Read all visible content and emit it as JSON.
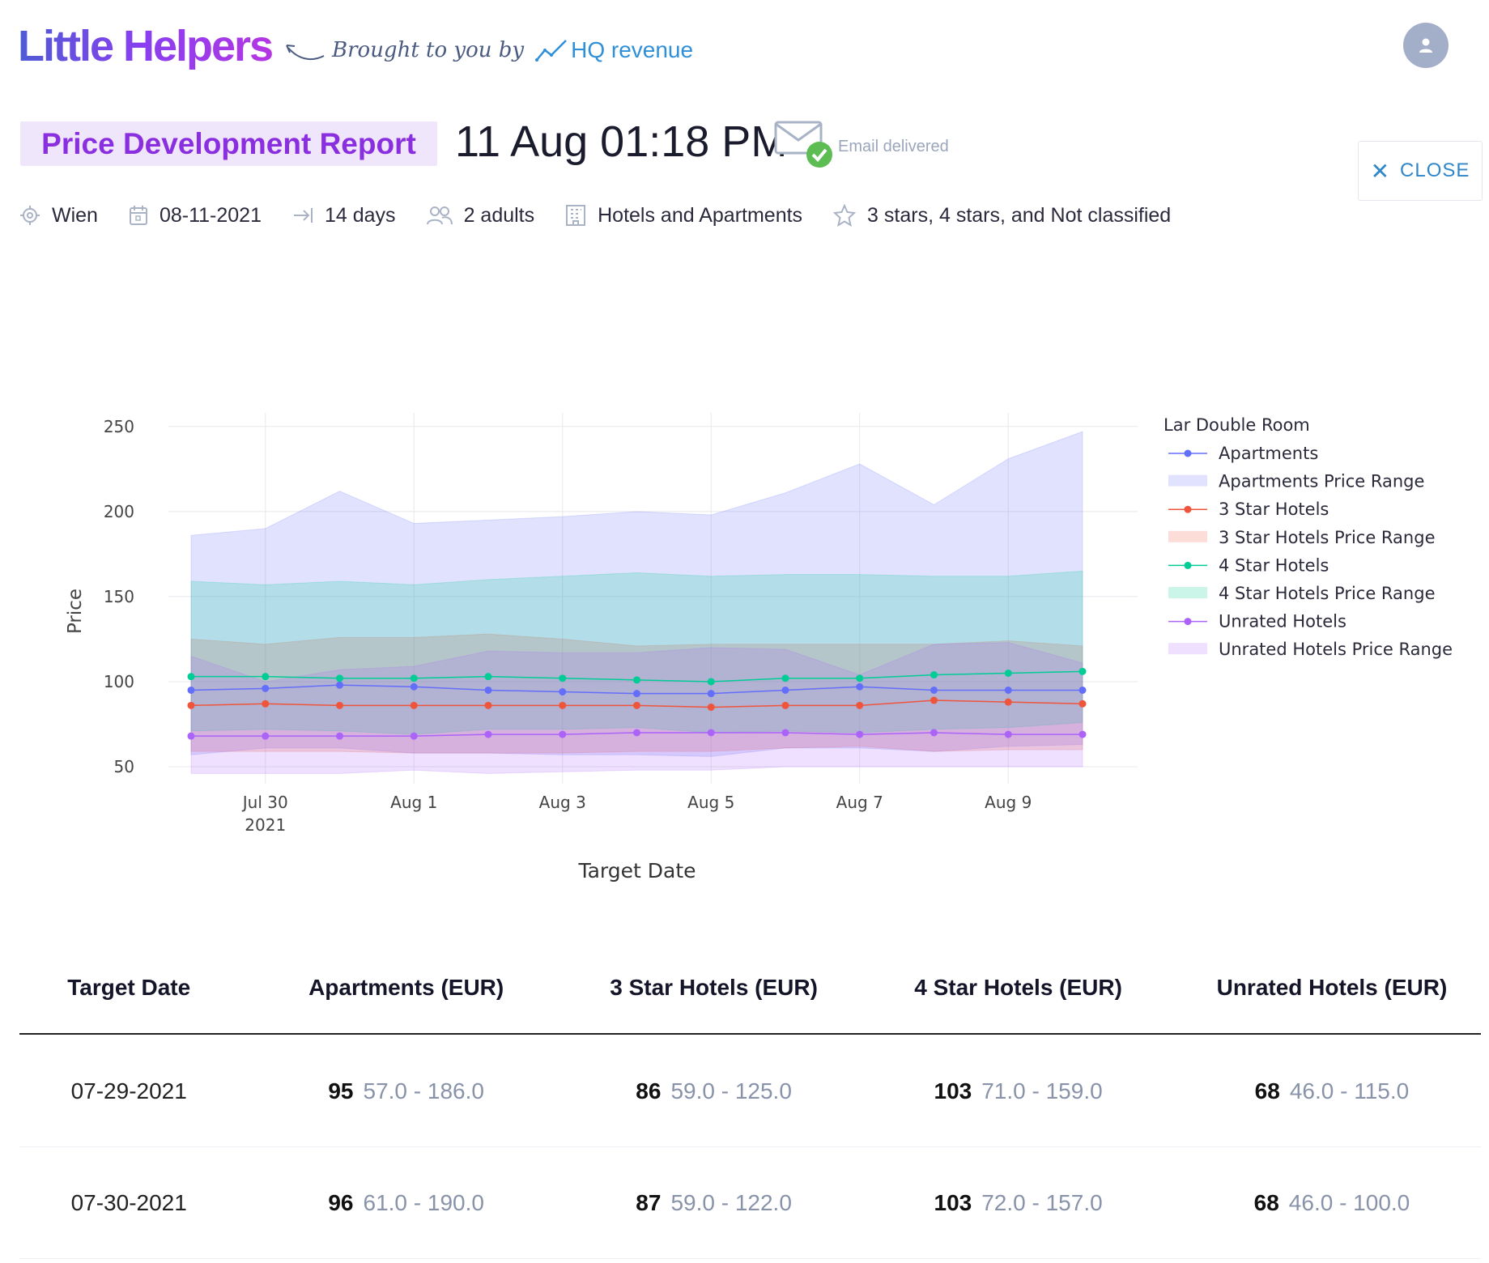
{
  "brand": {
    "name": "Little Helpers",
    "byline": "Brought to you by",
    "partner": "HQ revenue"
  },
  "header": {
    "title": "Price Development Report",
    "timestamp": "11 Aug 01:18 PM",
    "email_status": "Email delivered",
    "close_label": "CLOSE"
  },
  "filters": {
    "location": "Wien",
    "date": "08-11-2021",
    "duration": "14 days",
    "guests": "2 adults",
    "property_types": "Hotels and Apartments",
    "ratings": "3 stars, 4 stars, and Not classified"
  },
  "chart_data": {
    "type": "line",
    "xlabel": "Target Date",
    "ylabel": "Price",
    "ylim": [
      40,
      258
    ],
    "yticks": [
      50,
      100,
      150,
      200,
      250
    ],
    "xticks": [
      {
        "label": "Jul 30",
        "sub": "2021",
        "day": 1
      },
      {
        "label": "Aug 1",
        "sub": "",
        "day": 3
      },
      {
        "label": "Aug 3",
        "sub": "",
        "day": 5
      },
      {
        "label": "Aug 5",
        "sub": "",
        "day": 7
      },
      {
        "label": "Aug 7",
        "sub": "",
        "day": 9
      },
      {
        "label": "Aug 9",
        "sub": "",
        "day": 11
      }
    ],
    "x_days": [
      0,
      1,
      2,
      3,
      4,
      5,
      6,
      7,
      8,
      9,
      10,
      11,
      12
    ],
    "legend_title": "Lar Double Room",
    "legend": [
      "Apartments",
      "Apartments Price Range",
      "3 Star Hotels",
      "3 Star Hotels Price Range",
      "4 Star Hotels",
      "4 Star Hotels Price Range",
      "Unrated Hotels",
      "Unrated Hotels Price Range"
    ],
    "series": [
      {
        "name": "Apartments",
        "color": "#636efa",
        "values": [
          95,
          96,
          98,
          97,
          95,
          94,
          93,
          93,
          95,
          97,
          95,
          95,
          95
        ],
        "low": [
          57,
          61,
          61,
          58,
          58,
          57,
          57,
          56,
          61,
          61,
          59,
          62,
          63
        ],
        "high": [
          186,
          190,
          212,
          193,
          195,
          197,
          200,
          198,
          211,
          228,
          204,
          231,
          247
        ],
        "fill": "rgba(99,110,250,0.2)"
      },
      {
        "name": "3 Star Hotels",
        "color": "#ef553b",
        "values": [
          86,
          87,
          86,
          86,
          86,
          86,
          86,
          85,
          86,
          86,
          89,
          88,
          87
        ],
        "low": [
          59,
          59,
          59,
          58,
          58,
          58,
          59,
          59,
          61,
          62,
          59,
          60,
          60
        ],
        "high": [
          125,
          122,
          126,
          126,
          128,
          125,
          121,
          122,
          122,
          122,
          122,
          124,
          121
        ],
        "fill": "rgba(239,85,59,0.2)"
      },
      {
        "name": "4 Star Hotels",
        "color": "#00cc96",
        "values": [
          103,
          103,
          102,
          102,
          103,
          102,
          101,
          100,
          102,
          102,
          104,
          105,
          106
        ],
        "low": [
          71,
          72,
          71,
          69,
          72,
          72,
          73,
          70,
          71,
          70,
          72,
          73,
          76
        ],
        "high": [
          159,
          157,
          159,
          157,
          160,
          162,
          164,
          162,
          163,
          163,
          162,
          162,
          165
        ],
        "fill": "rgba(0,204,150,0.2)"
      },
      {
        "name": "Unrated Hotels",
        "color": "#ab63fa",
        "values": [
          68,
          68,
          68,
          68,
          69,
          69,
          70,
          70,
          70,
          69,
          70,
          69,
          69
        ],
        "low": [
          46,
          46,
          46,
          48,
          46,
          47,
          48,
          48,
          50,
          50,
          50,
          50,
          50
        ],
        "high": [
          115,
          100,
          107,
          109,
          118,
          117,
          117,
          120,
          119,
          104,
          122,
          123,
          111
        ],
        "fill": "rgba(171,99,250,0.2)"
      }
    ]
  },
  "table": {
    "headers": [
      "Target Date",
      "Apartments (EUR)",
      "3 Star Hotels (EUR)",
      "4 Star Hotels (EUR)",
      "Unrated Hotels (EUR)"
    ],
    "rows": [
      {
        "date": "07-29-2021",
        "apt": "95",
        "apt_range": "57.0 - 186.0",
        "s3": "86",
        "s3_range": "59.0 - 125.0",
        "s4": "103",
        "s4_range": "71.0 - 159.0",
        "un": "68",
        "un_range": "46.0 - 115.0"
      },
      {
        "date": "07-30-2021",
        "apt": "96",
        "apt_range": "61.0 - 190.0",
        "s3": "87",
        "s3_range": "59.0 - 122.0",
        "s4": "103",
        "s4_range": "72.0 - 157.0",
        "un": "68",
        "un_range": "46.0 - 100.0"
      }
    ]
  }
}
